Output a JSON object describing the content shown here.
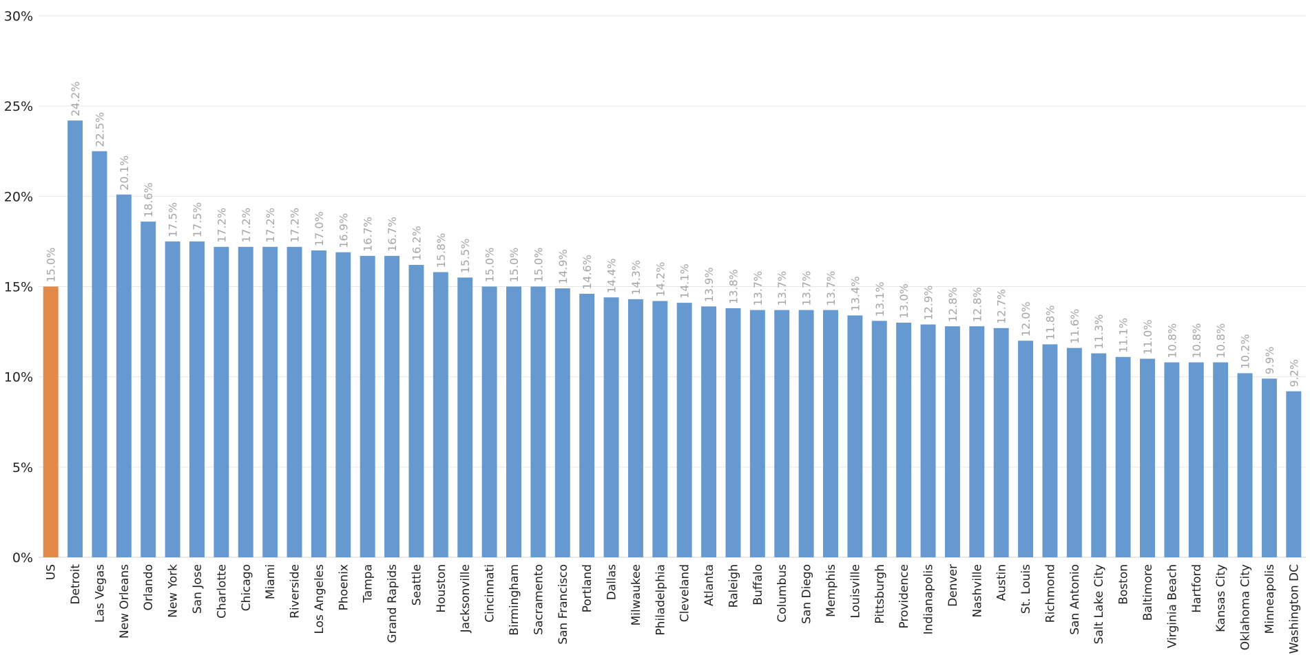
{
  "chart_data": {
    "type": "bar",
    "title": "",
    "xlabel": "",
    "ylabel": "",
    "ylim": [
      0,
      30
    ],
    "y_ticks": [
      "0%",
      "5%",
      "10%",
      "15%",
      "20%",
      "25%",
      "30%"
    ],
    "y_tick_values": [
      0,
      5,
      10,
      15,
      20,
      25,
      30
    ],
    "grid": true,
    "legend": "none",
    "colors": {
      "highlight": "#E3894A",
      "default": "#6699CF",
      "label": "#A6A6A6"
    },
    "categories": [
      "US",
      "Detroit",
      "Las Vegas",
      "New Orleans",
      "Orlando",
      "New York",
      "San Jose",
      "Charlotte",
      "Chicago",
      "Miami",
      "Riverside",
      "Los Angeles",
      "Phoenix",
      "Tampa",
      "Grand Rapids",
      "Seattle",
      "Houston",
      "Jacksonville",
      "Cincinnati",
      "Birmingham",
      "Sacramento",
      "San Francisco",
      "Portland",
      "Dallas",
      "Milwaukee",
      "Philadelphia",
      "Cleveland",
      "Atlanta",
      "Raleigh",
      "Buffalo",
      "Columbus",
      "San Diego",
      "Memphis",
      "Louisville",
      "Pittsburgh",
      "Providence",
      "Indianapolis",
      "Denver",
      "Nashville",
      "Austin",
      "St. Louis",
      "Richmond",
      "San Antonio",
      "Salt Lake City",
      "Boston",
      "Baltimore",
      "Virginia Beach",
      "Hartford",
      "Kansas City",
      "Oklahoma City",
      "Minneapolis",
      "Washington DC"
    ],
    "values": [
      15.0,
      24.2,
      22.5,
      20.1,
      18.6,
      17.5,
      17.5,
      17.2,
      17.2,
      17.2,
      17.2,
      17.0,
      16.9,
      16.7,
      16.7,
      16.2,
      15.8,
      15.5,
      15.0,
      15.0,
      15.0,
      14.9,
      14.6,
      14.4,
      14.3,
      14.2,
      14.1,
      13.9,
      13.8,
      13.7,
      13.7,
      13.7,
      13.7,
      13.4,
      13.1,
      13.0,
      12.9,
      12.8,
      12.8,
      12.7,
      12.0,
      11.8,
      11.6,
      11.3,
      11.1,
      11.0,
      10.8,
      10.8,
      10.8,
      10.2,
      9.9,
      9.2
    ],
    "data_labels": [
      "15.0%",
      "24.2%",
      "22.5%",
      "20.1%",
      "18.6%",
      "17.5%",
      "17.5%",
      "17.2%",
      "17.2%",
      "17.2%",
      "17.2%",
      "17.0%",
      "16.9%",
      "16.7%",
      "16.7%",
      "16.2%",
      "15.8%",
      "15.5%",
      "15.0%",
      "15.0%",
      "15.0%",
      "14.9%",
      "14.6%",
      "14.4%",
      "14.3%",
      "14.2%",
      "14.1%",
      "13.9%",
      "13.8%",
      "13.7%",
      "13.7%",
      "13.7%",
      "13.7%",
      "13.4%",
      "13.1%",
      "13.0%",
      "12.9%",
      "12.8%",
      "12.8%",
      "12.7%",
      "12.0%",
      "11.8%",
      "11.6%",
      "11.3%",
      "11.1%",
      "11.0%",
      "10.8%",
      "10.8%",
      "10.8%",
      "10.2%",
      "9.9%",
      "9.2%"
    ],
    "highlight_category": "US"
  }
}
